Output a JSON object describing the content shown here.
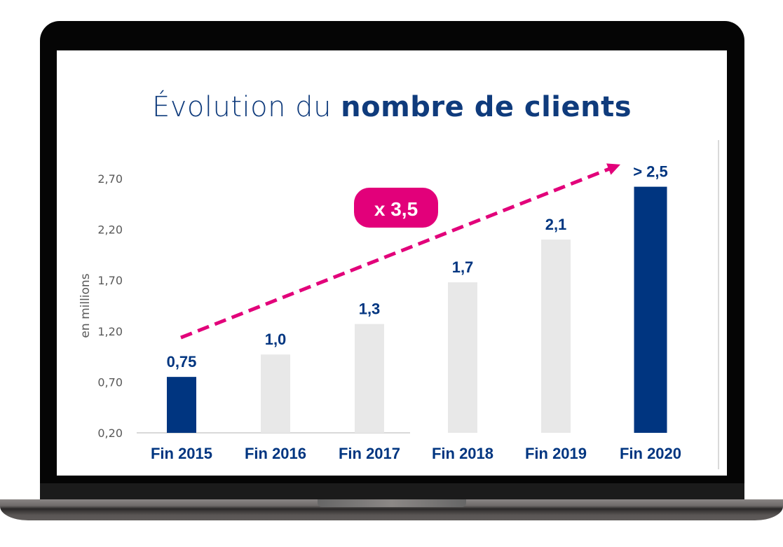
{
  "chart_data": {
    "type": "bar",
    "title_light": "Évolution du ",
    "title_bold": "nombre de clients",
    "ylabel": "en millions",
    "ylim": [
      0.2,
      2.7
    ],
    "yticks": [
      "0,20",
      "0,70",
      "1,20",
      "1,70",
      "2,20",
      "2,70"
    ],
    "ytick_values": [
      0.2,
      0.7,
      1.2,
      1.7,
      2.2,
      2.7
    ],
    "grid": false,
    "categories": [
      "Fin 2015",
      "Fin 2016",
      "Fin 2017",
      "Fin 2018",
      "Fin 2019",
      "Fin 2020"
    ],
    "values": [
      0.75,
      0.97,
      1.27,
      1.68,
      2.1,
      2.62
    ],
    "data_labels": [
      "0,75",
      "1,0",
      "1,3",
      "1,7",
      "2,1",
      "> 2,5"
    ],
    "highlighted": [
      true,
      false,
      false,
      false,
      false,
      true
    ],
    "annotation": "x 3,5",
    "trend_arrow": {
      "from_value": 1.2,
      "to_value": 2.8,
      "style": "dashed"
    }
  },
  "colors": {
    "highlight_bar": "#003580",
    "other_bar": "#e8e8e8",
    "label": "#003580",
    "accent": "#e2007a",
    "tick": "#595959"
  }
}
